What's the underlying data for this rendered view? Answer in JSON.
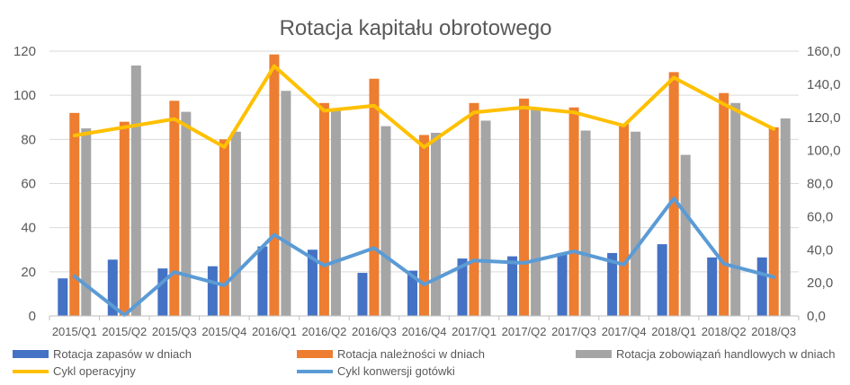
{
  "chart_data": {
    "type": "bar",
    "title": "Rotacja kapitału obrotowego",
    "categories": [
      "2015/Q1",
      "2015/Q2",
      "2015/Q3",
      "2015/Q4",
      "2016/Q1",
      "2016/Q2",
      "2016/Q3",
      "2016/Q4",
      "2017/Q1",
      "2017/Q2",
      "2017/Q3",
      "2017/Q4",
      "2018/Q1",
      "2018/Q2",
      "2018/Q3"
    ],
    "y_left": {
      "ylim": [
        0,
        120
      ],
      "ticks": [
        "0",
        "20",
        "40",
        "60",
        "80",
        "100",
        "120"
      ]
    },
    "y_right": {
      "ylim": [
        0,
        160
      ],
      "ticks": [
        "0,0",
        "20,0",
        "40,0",
        "60,0",
        "80,0",
        "100,0",
        "120,0",
        "140,0",
        "160,0"
      ]
    },
    "grid": true,
    "legend_position": "bottom",
    "series": [
      {
        "name": "Rotacja zapasów w dniach",
        "type": "bar",
        "axis": "left",
        "color": "#4472C4",
        "values": [
          17,
          25.5,
          21.5,
          22.5,
          31.5,
          30,
          19.5,
          20.5,
          26,
          27,
          28.5,
          28.5,
          32.5,
          26.5,
          26.5
        ]
      },
      {
        "name": "Rotacja należności w dniach",
        "type": "bar",
        "axis": "left",
        "color": "#ED7D31",
        "values": [
          92,
          88,
          97.5,
          80,
          118.5,
          96.5,
          107.5,
          82,
          96.5,
          98.5,
          94.5,
          87,
          110.5,
          101,
          85.5
        ]
      },
      {
        "name": "Rotacja zobowiązań handlowych w dniach",
        "type": "bar",
        "axis": "left",
        "color": "#A5A5A5",
        "values": [
          85,
          113.5,
          92.5,
          83.5,
          102,
          93,
          86,
          83,
          88.5,
          94,
          84,
          83.5,
          73,
          96.5,
          89.5
        ]
      },
      {
        "name": "Cykl operacyjny",
        "type": "line",
        "axis": "right",
        "color": "#FFC000",
        "values": [
          109,
          114,
          119,
          102,
          151,
          124,
          127,
          102,
          123,
          126,
          123,
          115,
          144,
          128,
          113
        ]
      },
      {
        "name": "Cykl konwersji gotówki",
        "type": "line",
        "axis": "right",
        "color": "#5B9BD5",
        "values": [
          24,
          0.5,
          26.5,
          18.5,
          49,
          30.5,
          41,
          19,
          33.5,
          32,
          39,
          31,
          71,
          31.5,
          23.5
        ]
      }
    ]
  }
}
